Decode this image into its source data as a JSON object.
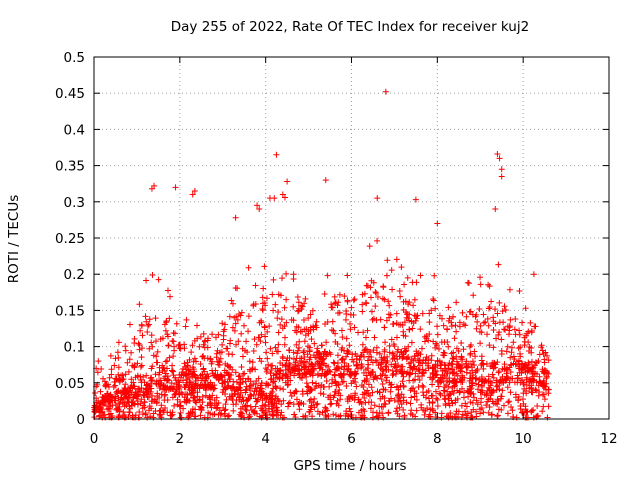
{
  "chart_data": {
    "type": "scatter",
    "title": "Day 255 of 2022, Rate Of TEC Index for receiver kuj2",
    "xlabel": "GPS time / hours",
    "ylabel": "ROTI / TECUs",
    "xlim": [
      0,
      12
    ],
    "ylim": [
      0,
      0.5
    ],
    "grid": true,
    "marker": "+",
    "series_color": "#ff0000",
    "x_ticks": [
      {
        "value": 0,
        "label": "0"
      },
      {
        "value": 2,
        "label": "2"
      },
      {
        "value": 4,
        "label": "4"
      },
      {
        "value": 6,
        "label": "6"
      },
      {
        "value": 8,
        "label": "8"
      },
      {
        "value": 10,
        "label": "10"
      },
      {
        "value": 12,
        "label": "12"
      }
    ],
    "y_ticks": [
      {
        "value": 0,
        "label": "0"
      },
      {
        "value": 0.05,
        "label": "0.05"
      },
      {
        "value": 0.1,
        "label": "0.1"
      },
      {
        "value": 0.15,
        "label": "0.15"
      },
      {
        "value": 0.2,
        "label": "0.2"
      },
      {
        "value": 0.25,
        "label": "0.25"
      },
      {
        "value": 0.3,
        "label": "0.3"
      },
      {
        "value": 0.35,
        "label": "0.35"
      },
      {
        "value": 0.4,
        "label": "0.4"
      },
      {
        "value": 0.45,
        "label": "0.45"
      },
      {
        "value": 0.5,
        "label": "0.5"
      }
    ],
    "data_x_range": [
      0,
      10.6
    ],
    "envelope": {
      "x": [
        0.0,
        0.3,
        0.5,
        1.0,
        1.3,
        1.5,
        2.0,
        2.5,
        3.0,
        3.5,
        4.0,
        4.5,
        5.0,
        5.5,
        6.0,
        6.5,
        7.0,
        7.5,
        8.0,
        8.5,
        9.0,
        9.5,
        10.0,
        10.3,
        10.6
      ],
      "base": [
        0.01,
        0.02,
        0.025,
        0.03,
        0.035,
        0.04,
        0.04,
        0.045,
        0.04,
        0.04,
        0.03,
        0.06,
        0.06,
        0.06,
        0.06,
        0.06,
        0.06,
        0.06,
        0.05,
        0.05,
        0.05,
        0.05,
        0.05,
        0.05,
        0.04
      ],
      "peak": [
        0.06,
        0.08,
        0.12,
        0.15,
        0.22,
        0.2,
        0.15,
        0.14,
        0.16,
        0.2,
        0.25,
        0.2,
        0.2,
        0.2,
        0.22,
        0.25,
        0.24,
        0.2,
        0.2,
        0.18,
        0.2,
        0.22,
        0.18,
        0.15,
        0.1
      ]
    },
    "notable_points": [
      {
        "x": 6.8,
        "y": 0.452
      },
      {
        "x": 4.25,
        "y": 0.365
      },
      {
        "x": 9.4,
        "y": 0.366
      },
      {
        "x": 9.45,
        "y": 0.36
      },
      {
        "x": 9.5,
        "y": 0.345
      },
      {
        "x": 9.5,
        "y": 0.335
      },
      {
        "x": 1.4,
        "y": 0.322
      },
      {
        "x": 1.35,
        "y": 0.318
      },
      {
        "x": 1.9,
        "y": 0.32
      },
      {
        "x": 2.35,
        "y": 0.315
      },
      {
        "x": 2.3,
        "y": 0.31
      },
      {
        "x": 5.4,
        "y": 0.33
      },
      {
        "x": 4.5,
        "y": 0.328
      },
      {
        "x": 4.4,
        "y": 0.31
      },
      {
        "x": 4.45,
        "y": 0.306
      },
      {
        "x": 7.5,
        "y": 0.303
      },
      {
        "x": 6.6,
        "y": 0.305
      },
      {
        "x": 9.35,
        "y": 0.29
      },
      {
        "x": 4.1,
        "y": 0.305
      },
      {
        "x": 4.2,
        "y": 0.305
      },
      {
        "x": 3.8,
        "y": 0.295
      },
      {
        "x": 3.85,
        "y": 0.29
      },
      {
        "x": 3.3,
        "y": 0.278
      },
      {
        "x": 8.0,
        "y": 0.27
      },
      {
        "x": 10.25,
        "y": 0.2
      },
      {
        "x": 0.1,
        "y": 0.08
      },
      {
        "x": 0.05,
        "y": 0.07
      }
    ],
    "point_count": 2600,
    "seed": 255
  }
}
